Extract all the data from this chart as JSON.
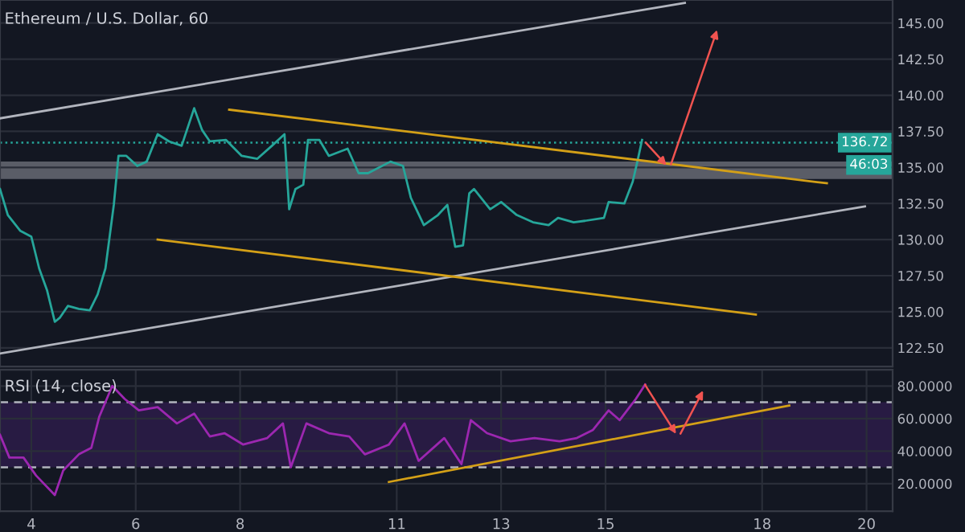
{
  "chart_data": [
    {
      "type": "line",
      "title": "Ethereum / U.S. Dollar, 60",
      "x": [
        3.4,
        3.55,
        3.79,
        4.0,
        4.15,
        4.3,
        4.45,
        4.55,
        4.7,
        4.91,
        5.12,
        5.27,
        5.42,
        5.58,
        5.67,
        5.82,
        6.03,
        6.21,
        6.42,
        6.64,
        6.88,
        7.12,
        7.27,
        7.42,
        7.73,
        8.03,
        8.33,
        8.61,
        8.85,
        8.94,
        9.06,
        9.21,
        9.3,
        9.52,
        9.7,
        10.06,
        10.27,
        10.45,
        10.88,
        11.12,
        11.27,
        11.52,
        11.79,
        11.97,
        12.12,
        12.27,
        12.39,
        12.48,
        12.79,
        13.0,
        13.3,
        13.61,
        13.91,
        14.09,
        14.39,
        14.61,
        14.97,
        15.06,
        15.36,
        15.52,
        15.61,
        15.7
      ],
      "series": [
        {
          "color": "#26a69a",
          "values": [
            133.5,
            131.7,
            130.6,
            130.2,
            128.0,
            126.5,
            124.3,
            124.6,
            125.4,
            125.2,
            125.1,
            126.2,
            128.0,
            132.4,
            135.8,
            135.8,
            135.1,
            135.4,
            137.3,
            136.8,
            136.5,
            139.1,
            137.6,
            136.8,
            136.9,
            135.8,
            135.6,
            136.5,
            137.3,
            132.1,
            133.5,
            133.8,
            136.9,
            136.9,
            135.8,
            136.3,
            134.6,
            134.6,
            135.4,
            135.1,
            132.9,
            131.0,
            131.7,
            132.4,
            129.5,
            129.6,
            133.2,
            133.5,
            132.1,
            132.6,
            131.7,
            131.2,
            131.0,
            131.5,
            131.2,
            131.3,
            131.5,
            132.6,
            132.5,
            134.0,
            135.4,
            136.9
          ]
        },
        {
          "x": [
            3.4,
            16.52
          ],
          "color": "#b2b5be",
          "values": [
            138.4,
            146.4
          ]
        },
        {
          "x": [
            3.4,
            19.97
          ],
          "color": "#b2b5be",
          "values": [
            122.1,
            132.3
          ]
        },
        {
          "x": [
            7.79,
            19.24
          ],
          "color": "#d4a017",
          "values": [
            139.0,
            133.9
          ]
        },
        {
          "x": [
            6.42,
            17.88
          ],
          "color": "#d4a017",
          "values": [
            130.0,
            124.8
          ]
        }
      ],
      "xlim": [
        3.4,
        20.5
      ],
      "ylim": [
        121.2,
        146.6
      ],
      "yticks": [
        {
          "value": 122.5,
          "label": "122.50"
        },
        {
          "value": 125,
          "label": "125.00"
        },
        {
          "value": 127.5,
          "label": "127.50"
        },
        {
          "value": 130,
          "label": "130.00"
        },
        {
          "value": 132.5,
          "label": "132.50"
        },
        {
          "value": 135,
          "label": "135.00"
        },
        {
          "value": 137.5,
          "label": "137.50"
        },
        {
          "value": 140,
          "label": "140.00"
        },
        {
          "value": 142.5,
          "label": "142.50"
        },
        {
          "value": 145,
          "label": "145.00"
        }
      ],
      "tick_labels": "y",
      "grid": true,
      "ref_lines": [
        {
          "axis": "y",
          "value": 136.72,
          "label": "136.72",
          "color": "#26a69a",
          "line_style": "dotted"
        }
      ],
      "bands": [
        {
          "axis": "y",
          "from": 134.2,
          "to": 135.4,
          "color": "#9598a1"
        }
      ],
      "annotations": [
        "46:03"
      ]
    },
    {
      "type": "line",
      "title": "RSI (14, close)",
      "x": [
        3.4,
        3.58,
        3.85,
        4.09,
        4.45,
        4.61,
        4.91,
        5.15,
        5.3,
        5.55,
        5.79,
        6.06,
        6.42,
        6.79,
        7.12,
        7.42,
        7.7,
        8.06,
        8.52,
        8.82,
        8.97,
        9.27,
        9.7,
        10.09,
        10.39,
        10.85,
        11.15,
        11.42,
        11.91,
        12.24,
        12.42,
        12.73,
        13.18,
        13.64,
        14.12,
        14.45,
        14.76,
        15.06,
        15.27,
        15.58,
        15.76
      ],
      "series": [
        {
          "color": "#9c27b0",
          "values": [
            50,
            36,
            36,
            25,
            13,
            28,
            38,
            42,
            61,
            80,
            72,
            65,
            67,
            57,
            63,
            49,
            51,
            44,
            48,
            57,
            30,
            57,
            51,
            49,
            38,
            44,
            57,
            34,
            48,
            32,
            59,
            51,
            46,
            48,
            46,
            48,
            53,
            65,
            59,
            72,
            81
          ]
        },
        {
          "x": [
            10.85,
            18.52
          ],
          "color": "#d4a017",
          "values": [
            21,
            68
          ]
        }
      ],
      "xlim": [
        3.4,
        20.5
      ],
      "ylim": [
        3,
        90
      ],
      "xticks": [
        4,
        6,
        8,
        11,
        13,
        15,
        18,
        20
      ],
      "yticks": [
        {
          "value": 20,
          "label": "20.0000"
        },
        {
          "value": 40,
          "label": "40.0000"
        },
        {
          "value": 60,
          "label": "60.0000"
        },
        {
          "value": 80,
          "label": "80.0000"
        }
      ],
      "grid": true,
      "ref_lines": [
        {
          "axis": "y",
          "value": 70,
          "color": "#b2b5be",
          "line_style": "dashed"
        },
        {
          "axis": "y",
          "value": 30,
          "color": "#b2b5be",
          "line_style": "dashed"
        }
      ],
      "bands": [
        {
          "axis": "y",
          "from": 30,
          "to": 70,
          "color": "#3b1f5e"
        }
      ]
    }
  ]
}
